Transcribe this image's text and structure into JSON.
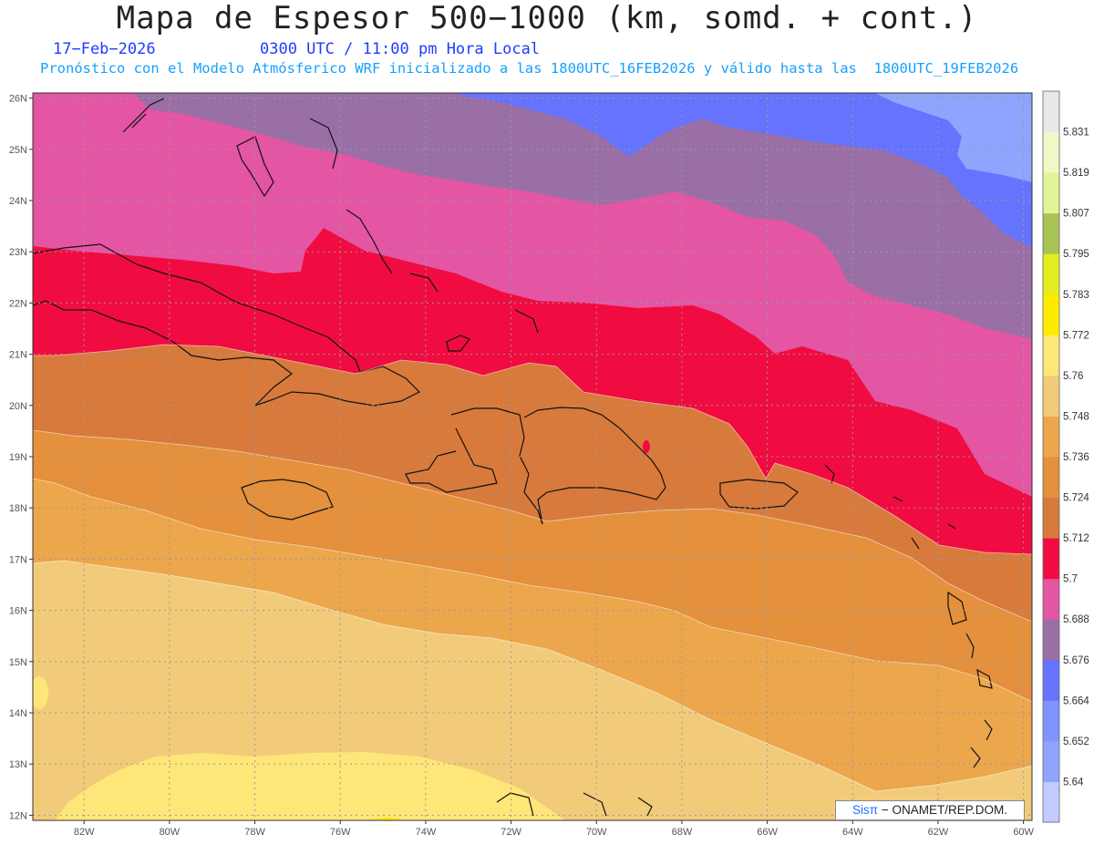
{
  "header": {
    "title": "Mapa de Espesor 500−1000 (km, somd. + cont.)",
    "date": "17−Feb−2026",
    "time": "0300 UTC / 11:00 pm Hora Local",
    "forecast": "Pronóstico con el Modelo Atmósferico WRF inicializado a las 1800UTC_16FEB2026 y válido hasta las  1800UTC_19FEB2026"
  },
  "map": {
    "lon_range": [
      -83.2,
      -59.8
    ],
    "lat_range": [
      11.9,
      26.1
    ],
    "lat_ticks": [
      "12N",
      "13N",
      "14N",
      "15N",
      "16N",
      "17N",
      "18N",
      "19N",
      "20N",
      "21N",
      "22N",
      "23N",
      "24N",
      "25N",
      "26N"
    ],
    "lon_ticks": [
      "82W",
      "80W",
      "78W",
      "76W",
      "74W",
      "72W",
      "70W",
      "68W",
      "66W",
      "64W",
      "62W",
      "60W"
    ],
    "gridlines": true
  },
  "colorbar": {
    "labels": [
      "5.64",
      "5.652",
      "5.664",
      "5.676",
      "5.688",
      "5.7",
      "5.712",
      "5.724",
      "5.736",
      "5.748",
      "5.76",
      "5.772",
      "5.783",
      "5.795",
      "5.807",
      "5.819",
      "5.831"
    ],
    "colors": [
      "#c2ccff",
      "#8ea4ff",
      "#7f94ff",
      "#6573ff",
      "#9a6fa6",
      "#e455a3",
      "#f00c40",
      "#d87a3c",
      "#e4903c",
      "#eca64c",
      "#f2cb7a",
      "#ffe679",
      "#ffeb00",
      "#e2ec1e",
      "#a8c553",
      "#e1f598",
      "#f1f7c7",
      "#e8e8e8"
    ]
  },
  "credit": {
    "brand": "Sisπ",
    "rest": "− ONAMET/REP.DOM."
  }
}
